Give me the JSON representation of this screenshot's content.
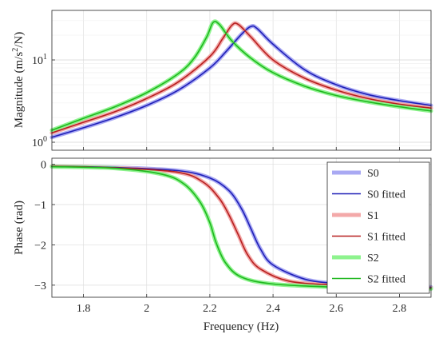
{
  "chart_data": {
    "type": "line",
    "grid": true,
    "xlabel": "Frequency (Hz)",
    "xlim": [
      1.7,
      2.9
    ],
    "xticks": [
      1.8,
      2.0,
      2.2,
      2.4,
      2.6,
      2.8
    ],
    "xtick_labels": [
      "1.8",
      "2",
      "2.2",
      "2.4",
      "2.6",
      "2.8"
    ],
    "colors": {
      "S0": "#a9a9f3",
      "S0 fitted": "#1f1fb7",
      "S1": "#f3a9a9",
      "S1 fitted": "#b71f1f",
      "S2": "#8ef38e",
      "S2 fitted": "#1fb71f"
    },
    "legend": {
      "location": "lower-right of phase panel",
      "entries": [
        "S0",
        "S0 fitted",
        "S1",
        "S1 fitted",
        "S2",
        "S2 fitted"
      ]
    },
    "panels": [
      {
        "id": "magnitude",
        "ylabel_main": "Magnitude (m/s",
        "ylabel_sup": "2",
        "ylabel_tail": "/N)",
        "yscale": "log",
        "ylim": [
          0.8,
          40
        ],
        "yticks": [
          1,
          10
        ],
        "ytick_base": "10",
        "ytick_exps": [
          "0",
          "1"
        ],
        "series": [
          {
            "name": "S0",
            "style": "measured",
            "x": [
              1.7,
              1.8,
              1.9,
              2.0,
              2.1,
              2.2,
              2.25,
              2.3,
              2.33,
              2.35,
              2.4,
              2.5,
              2.6,
              2.7,
              2.8,
              2.9
            ],
            "y": [
              1.15,
              1.5,
              2.0,
              2.8,
              4.3,
              8.0,
              12.5,
              20.5,
              25.5,
              24.0,
              15.5,
              7.6,
              5.0,
              3.8,
              3.2,
              2.8
            ]
          },
          {
            "name": "S0 fitted",
            "style": "fitted",
            "x": [
              1.7,
              1.8,
              1.9,
              2.0,
              2.1,
              2.2,
              2.25,
              2.3,
              2.33,
              2.35,
              2.4,
              2.5,
              2.6,
              2.7,
              2.8,
              2.9
            ],
            "y": [
              1.15,
              1.5,
              2.0,
              2.8,
              4.3,
              8.0,
              12.5,
              20.5,
              25.5,
              24.0,
              15.5,
              7.6,
              5.0,
              3.8,
              3.2,
              2.8
            ]
          },
          {
            "name": "S1",
            "style": "measured",
            "x": [
              1.7,
              1.8,
              1.9,
              2.0,
              2.1,
              2.2,
              2.24,
              2.27,
              2.29,
              2.33,
              2.4,
              2.5,
              2.6,
              2.7,
              2.8,
              2.9
            ],
            "y": [
              1.3,
              1.75,
              2.35,
              3.4,
              5.4,
              11.0,
              18.0,
              26.5,
              27.0,
              19.0,
              10.0,
              6.0,
              4.3,
              3.4,
              2.9,
              2.6
            ]
          },
          {
            "name": "S1 fitted",
            "style": "fitted",
            "x": [
              1.7,
              1.8,
              1.9,
              2.0,
              2.1,
              2.2,
              2.24,
              2.27,
              2.29,
              2.33,
              2.4,
              2.5,
              2.6,
              2.7,
              2.8,
              2.9
            ],
            "y": [
              1.3,
              1.75,
              2.35,
              3.4,
              5.4,
              11.0,
              18.0,
              26.5,
              27.0,
              19.0,
              10.0,
              6.0,
              4.3,
              3.4,
              2.9,
              2.6
            ]
          },
          {
            "name": "S2",
            "style": "measured",
            "x": [
              1.7,
              1.8,
              1.9,
              2.0,
              2.1,
              2.15,
              2.19,
              2.21,
              2.23,
              2.27,
              2.33,
              2.4,
              2.5,
              2.6,
              2.7,
              2.8,
              2.9
            ],
            "y": [
              1.4,
              1.95,
              2.7,
              4.0,
              6.8,
              10.5,
              19.0,
              28.5,
              27.0,
              17.0,
              10.5,
              7.0,
              4.8,
              3.7,
              3.1,
              2.7,
              2.4
            ]
          },
          {
            "name": "S2 fitted",
            "style": "fitted",
            "x": [
              1.7,
              1.8,
              1.9,
              2.0,
              2.1,
              2.15,
              2.19,
              2.21,
              2.23,
              2.27,
              2.33,
              2.4,
              2.5,
              2.6,
              2.7,
              2.8,
              2.9
            ],
            "y": [
              1.4,
              1.95,
              2.7,
              4.0,
              6.8,
              10.5,
              19.0,
              28.5,
              27.0,
              17.0,
              10.5,
              7.0,
              4.8,
              3.7,
              3.1,
              2.7,
              2.4
            ]
          }
        ]
      },
      {
        "id": "phase",
        "ylabel": "Phase (rad)",
        "yscale": "linear",
        "ylim": [
          -3.3,
          0.15
        ],
        "yticks": [
          0,
          -1,
          -2,
          -3
        ],
        "ytick_labels": [
          "0",
          "−1",
          "−2",
          "−3"
        ],
        "series": [
          {
            "name": "S0",
            "style": "measured",
            "x": [
              1.7,
              1.9,
              2.1,
              2.2,
              2.26,
              2.3,
              2.33,
              2.36,
              2.4,
              2.5,
              2.6,
              2.7,
              2.8,
              2.9
            ],
            "y": [
              -0.05,
              -0.08,
              -0.16,
              -0.34,
              -0.65,
              -1.1,
              -1.6,
              -2.1,
              -2.5,
              -2.85,
              -2.96,
              -3.0,
              -3.03,
              -3.05
            ]
          },
          {
            "name": "S0 fitted",
            "style": "fitted",
            "x": [
              1.7,
              1.9,
              2.1,
              2.2,
              2.26,
              2.3,
              2.33,
              2.36,
              2.4,
              2.5,
              2.6,
              2.7,
              2.8,
              2.9
            ],
            "y": [
              -0.05,
              -0.08,
              -0.16,
              -0.34,
              -0.65,
              -1.1,
              -1.6,
              -2.1,
              -2.5,
              -2.85,
              -2.96,
              -3.0,
              -3.03,
              -3.05
            ]
          },
          {
            "name": "S1",
            "style": "measured",
            "x": [
              1.7,
              1.9,
              2.1,
              2.18,
              2.23,
              2.26,
              2.29,
              2.32,
              2.36,
              2.45,
              2.6,
              2.8,
              2.9
            ],
            "y": [
              -0.05,
              -0.09,
              -0.2,
              -0.45,
              -0.85,
              -1.25,
              -1.75,
              -2.25,
              -2.6,
              -2.9,
              -3.0,
              -3.06,
              -3.07
            ]
          },
          {
            "name": "S1 fitted",
            "style": "fitted",
            "x": [
              1.7,
              1.9,
              2.1,
              2.18,
              2.23,
              2.26,
              2.29,
              2.32,
              2.36,
              2.45,
              2.6,
              2.8,
              2.9
            ],
            "y": [
              -0.05,
              -0.09,
              -0.2,
              -0.45,
              -0.85,
              -1.25,
              -1.75,
              -2.25,
              -2.6,
              -2.9,
              -3.0,
              -3.06,
              -3.07
            ]
          },
          {
            "name": "S2",
            "style": "measured",
            "x": [
              1.7,
              1.9,
              2.05,
              2.12,
              2.17,
              2.2,
              2.22,
              2.25,
              2.3,
              2.4,
              2.6,
              2.8,
              2.9
            ],
            "y": [
              -0.06,
              -0.1,
              -0.25,
              -0.5,
              -0.95,
              -1.45,
              -1.95,
              -2.45,
              -2.8,
              -2.97,
              -3.05,
              -3.08,
              -3.09
            ]
          },
          {
            "name": "S2 fitted",
            "style": "fitted",
            "x": [
              1.7,
              1.9,
              2.05,
              2.12,
              2.17,
              2.2,
              2.22,
              2.25,
              2.3,
              2.4,
              2.6,
              2.8,
              2.9
            ],
            "y": [
              -0.06,
              -0.1,
              -0.25,
              -0.5,
              -0.95,
              -1.45,
              -1.95,
              -2.45,
              -2.8,
              -2.97,
              -3.05,
              -3.08,
              -3.09
            ]
          }
        ]
      }
    ]
  }
}
